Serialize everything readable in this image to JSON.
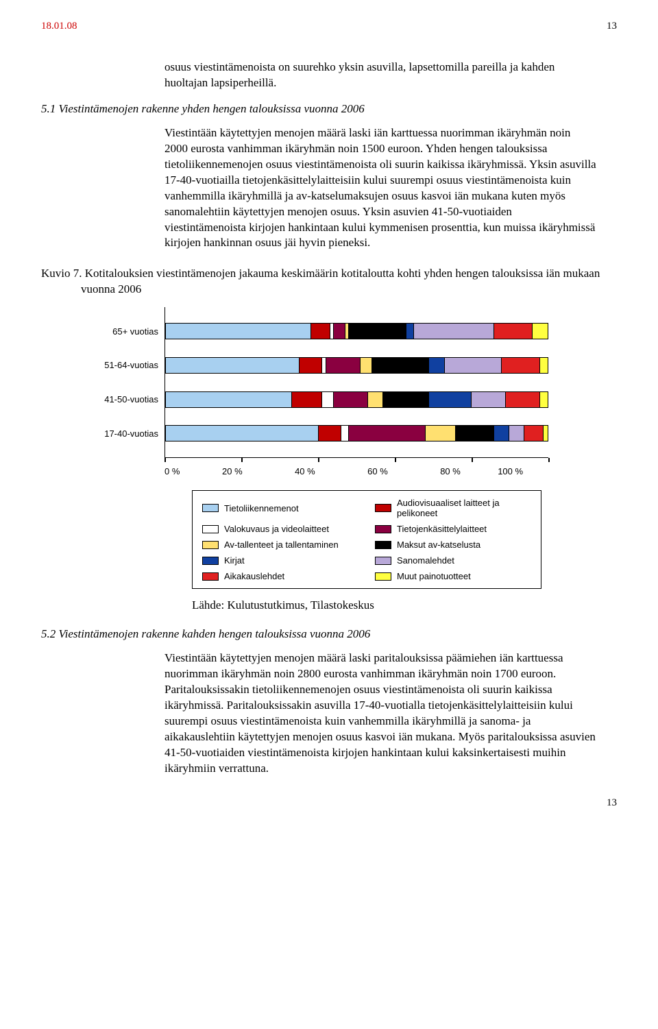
{
  "header": {
    "date": "18.01.08",
    "page_top": "13",
    "page_bottom": "13"
  },
  "intro_para": "osuus viestintämenoista on suurehko yksin asuvilla, lapsettomilla pareilla ja kahden huoltajan lapsiperheillä.",
  "section51": {
    "title": "5.1 Viestintämenojen rakenne yhden hengen talouksissa vuonna 2006",
    "body": "Viestintään käytettyjen menojen määrä laski iän karttuessa nuorimman ikäryhmän noin 2000 eurosta vanhimman ikäryhmän noin 1500 euroon. Yhden hengen talouksissa tietoliikennemenojen osuus viestintämenoista oli suurin kaikissa ikäryhmissä. Yksin asuvilla 17-40-vuotiailla tietojenkäsittelylaitteisiin kului suurempi osuus viestintämenoista kuin vanhemmilla ikäryhmillä ja av-katselumaksujen osuus kasvoi iän mukana kuten myös sanomalehtiin käytettyjen menojen osuus. Yksin asuvien 41-50-vuotiaiden viestintämenoista kirjojen hankintaan kului kymmenisen prosenttia, kun muissa ikäryhmissä kirjojen hankinnan osuus jäi hyvin pieneksi."
  },
  "kuvio7": {
    "caption": "Kuvio 7. Kotitalouksien viestintämenojen jakauma keskimäärin kotitaloutta kohti yhden hengen talouksissa iän mukaan vuonna 2006",
    "type": "stacked-bar-horizontal",
    "xlim": [
      0,
      100
    ],
    "xticks": [
      "0 %",
      "20 %",
      "40 %",
      "60 %",
      "80 %",
      "100 %"
    ],
    "categories": [
      "65+ vuotias",
      "51-64-vuotias",
      "41-50-vuotias",
      "17-40-vuotias"
    ],
    "series_labels": [
      "Tietoliikennemenot",
      "Audiovisuaaliset laitteet ja pelikoneet",
      "Valokuvaus ja videolaitteet",
      "Tietojenkäsittelylaitteet",
      "Av-tallenteet ja tallentaminen",
      "Maksut av-katselusta",
      "Kirjat",
      "Sanomalehdet",
      "Aikakauslehdet",
      "Muut painotuotteet"
    ],
    "series_colors": [
      "#a8d0f0",
      "#c00000",
      "#ffffff",
      "#8a0040",
      "#ffe070",
      "#000000",
      "#1040a0",
      "#b8a8d8",
      "#e02020",
      "#ffff40"
    ],
    "values": [
      [
        38,
        5,
        1,
        3,
        1,
        15,
        2,
        21,
        10,
        4
      ],
      [
        35,
        6,
        1,
        9,
        3,
        15,
        4,
        15,
        10,
        2
      ],
      [
        33,
        8,
        3,
        9,
        4,
        12,
        11,
        9,
        9,
        2
      ],
      [
        40,
        6,
        2,
        20,
        8,
        10,
        4,
        4,
        5,
        1
      ]
    ],
    "label_fontsize": 13,
    "background_color": "#ffffff",
    "border_color": "#000000"
  },
  "source": "Lähde: Kulutustutkimus, Tilastokeskus",
  "section52": {
    "title": "5.2 Viestintämenojen rakenne kahden hengen talouksissa vuonna 2006",
    "body": "Viestintään käytettyjen menojen määrä laski paritalouksissa päämiehen iän karttuessa nuorimman ikäryhmän noin 2800 eurosta vanhimman ikäryhmän noin 1700 euroon. Paritalouksissakin tietoliikennemenojen osuus viestintämenoista oli suurin kaikissa ikäryhmissä. Paritalouksissakin asuvilla 17-40-vuotialla tietojenkäsittelylaitteisiin kului suurempi osuus viestintämenoista kuin vanhemmilla ikäryhmillä ja sanoma- ja aikakauslehtiin käytettyjen menojen osuus kasvoi iän mukana. Myös paritalouksissa asuvien 41-50-vuotiaiden viestintämenoista kirjojen hankintaan kului kaksinkertaisesti muihin ikäryhmiin verrattuna."
  }
}
